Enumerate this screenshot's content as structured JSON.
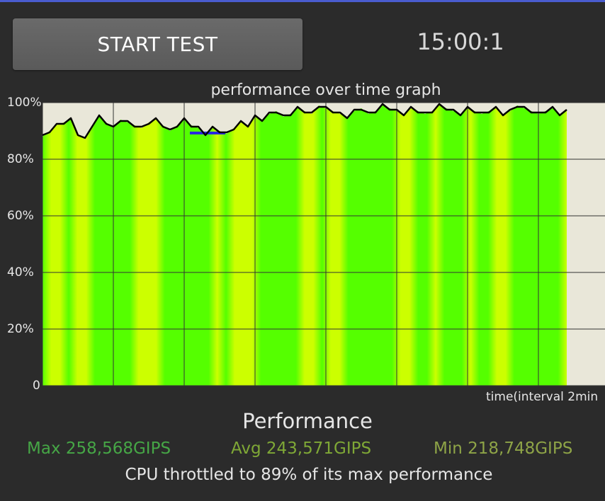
{
  "header": {
    "start_button_label": "START TEST",
    "timer": "15:00:1"
  },
  "graph": {
    "title": "performance over time graph",
    "y_tick_labels": [
      "100%",
      "80%",
      "60%",
      "40%",
      "20%",
      "0"
    ],
    "x_label": "time(interval 2min",
    "colors": {
      "background": "#e9e7d9",
      "fill_green": "#55ff00",
      "fill_yellow": "#ccff00",
      "line": "#000000",
      "marker": "#2a2ae0",
      "grid": "#333333"
    }
  },
  "chart_data": {
    "type": "area",
    "xlabel": "time(interval 2min",
    "ylabel": "",
    "ylim": [
      0,
      100
    ],
    "yticks": [
      0,
      20,
      40,
      60,
      80,
      100
    ],
    "x_intervals": 7.4,
    "grid": true,
    "series": [
      {
        "values": [
          88,
          90,
          92,
          93,
          94,
          89,
          87,
          92,
          95,
          93,
          91,
          94,
          93,
          92,
          91,
          93,
          94,
          92,
          90,
          92,
          94,
          92,
          91,
          89,
          91,
          90,
          89,
          91,
          93,
          92,
          95,
          94,
          96,
          97,
          95,
          96,
          98,
          97,
          96,
          99,
          98,
          97,
          96,
          95,
          97,
          98,
          96,
          97,
          99,
          98,
          97,
          96,
          98,
          97,
          96,
          97,
          99,
          98,
          97,
          96,
          98,
          97,
          96,
          97,
          98,
          96,
          97,
          99,
          98,
          97,
          96,
          97,
          98,
          96,
          97
        ]
      }
    ]
  },
  "performance": {
    "heading": "Performance",
    "max": "Max 258,568GIPS",
    "avg": "Avg 243,571GIPS",
    "min": "Min 218,748GIPS",
    "throttle_text": "CPU throttled to 89% of its max performance"
  }
}
